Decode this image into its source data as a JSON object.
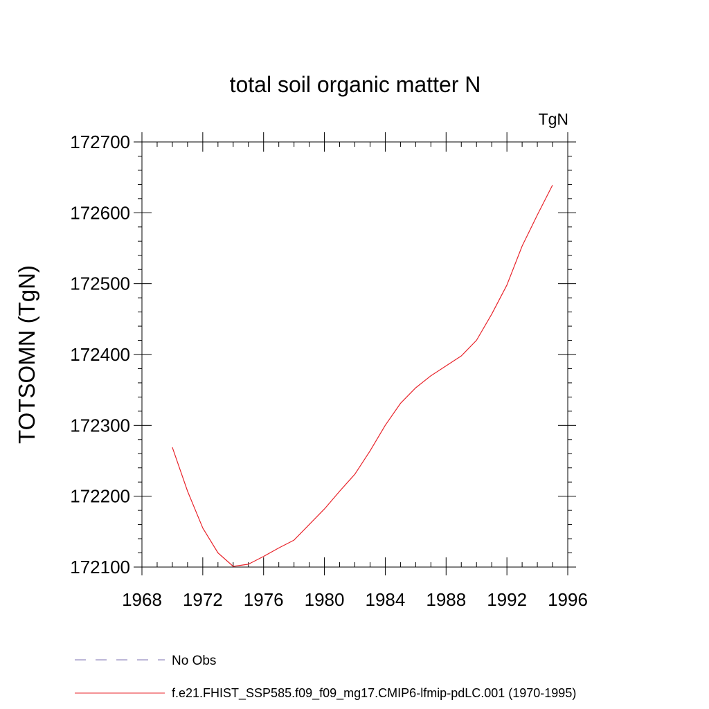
{
  "chart_data": {
    "type": "line",
    "title": "total soil organic matter N",
    "units_label": "TgN",
    "ylabel": "TOTSOMN  (TgN)",
    "xlabel": "",
    "xlim": [
      1968,
      1996
    ],
    "ylim": [
      172100,
      172700
    ],
    "x_ticks": [
      1968,
      1972,
      1976,
      1980,
      1984,
      1988,
      1992,
      1996
    ],
    "x_tick_labels": [
      "1968",
      "1972",
      "1976",
      "1980",
      "1984",
      "1988",
      "1992",
      "1996"
    ],
    "y_ticks": [
      172100,
      172200,
      172300,
      172400,
      172500,
      172600,
      172700
    ],
    "y_tick_labels": [
      "172100",
      "172200",
      "172300",
      "172400",
      "172500",
      "172600",
      "172700"
    ],
    "grid": false,
    "legend_placement": "bottom",
    "series": [
      {
        "name": "f.e21.FHIST_SSP585.f09_f09_mg17.CMIP6-lfmip-pdLC.001 (1970-1995)",
        "color": "#e8242b",
        "line_style": "solid",
        "x": [
          1970,
          1971,
          1972,
          1973,
          1974,
          1975,
          1976,
          1977,
          1978,
          1979,
          1980,
          1981,
          1982,
          1983,
          1984,
          1985,
          1986,
          1987,
          1988,
          1989,
          1990,
          1991,
          1992,
          1993,
          1994,
          1995
        ],
        "y": [
          172269,
          172207,
          172155,
          172120,
          172101,
          172104,
          172115,
          172127,
          172138,
          172160,
          172182,
          172207,
          172231,
          172264,
          172300,
          172331,
          172353,
          172370,
          172384,
          172398,
          172420,
          172457,
          172498,
          172553,
          172597,
          172639
        ]
      }
    ],
    "legend": [
      {
        "label": "No Obs",
        "color": "#7b6fb0",
        "line_style": "dashed"
      },
      {
        "label": "f.e21.FHIST_SSP585.f09_f09_mg17.CMIP6-lfmip-pdLC.001 (1970-1995)",
        "color": "#e8242b",
        "line_style": "solid"
      }
    ]
  }
}
